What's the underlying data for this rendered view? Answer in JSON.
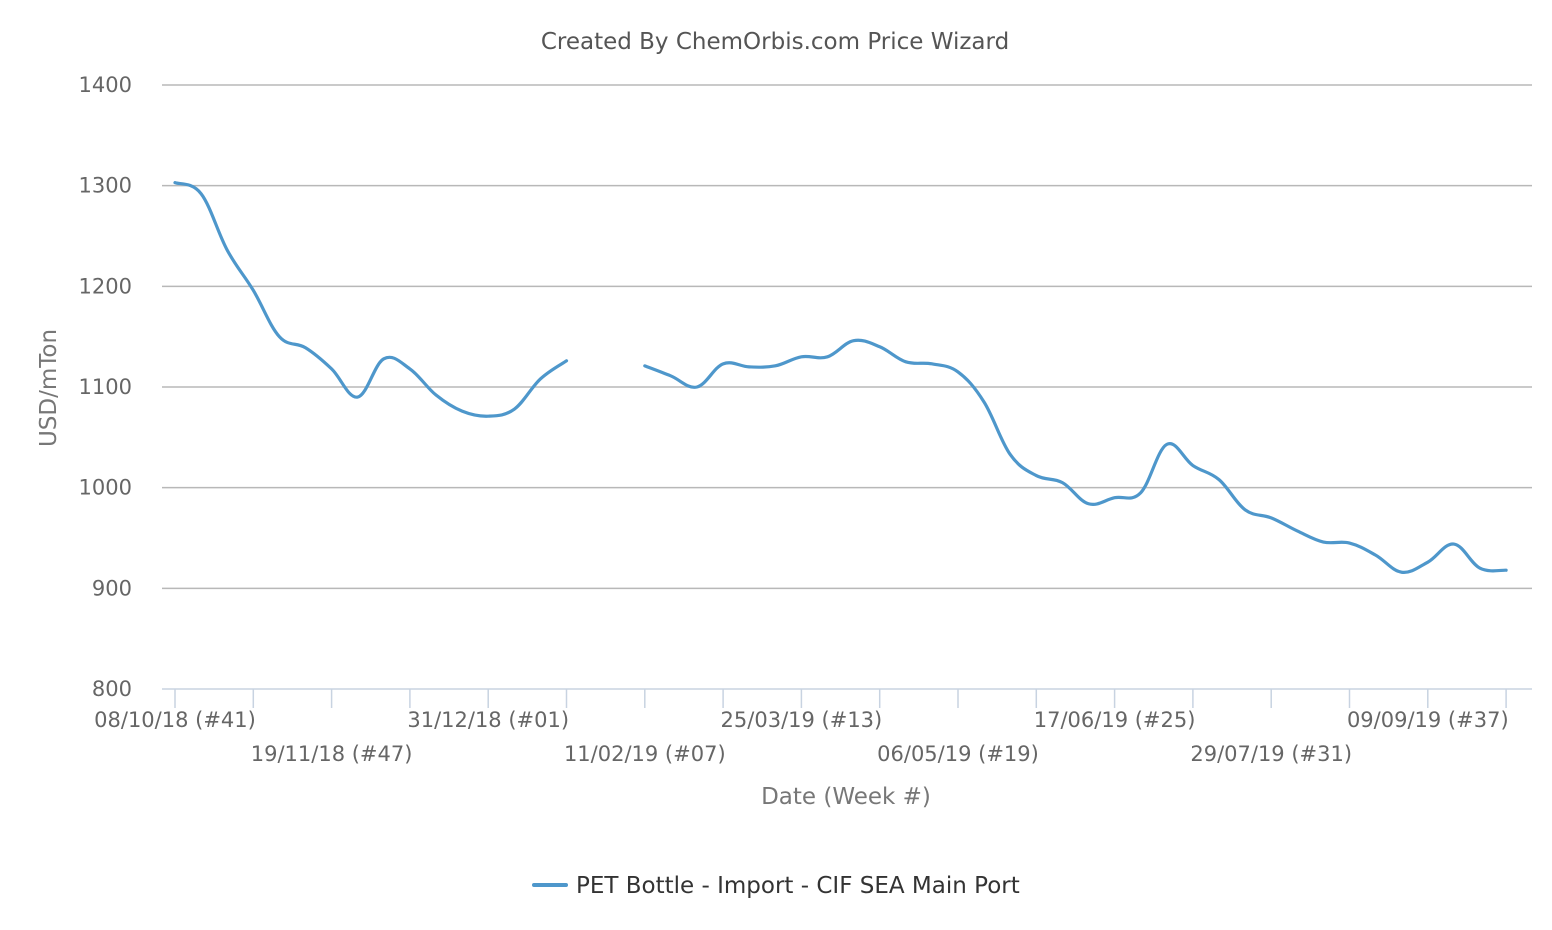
{
  "chart_data": {
    "type": "line",
    "title": "Created By ChemOrbis.com Price Wizard",
    "xlabel": "Date (Week #)",
    "ylabel": "USD/mTon",
    "ylim": [
      800,
      1400
    ],
    "yticks": [
      800,
      900,
      1000,
      1100,
      1200,
      1300,
      1400
    ],
    "grid": true,
    "legend_position": "bottom-center",
    "x_tick_labels": [
      "08/10/18 (#41)",
      "19/11/18 (#47)",
      "31/12/18 (#01)",
      "11/02/19 (#07)",
      "25/03/19 (#13)",
      "06/05/19 (#19)",
      "17/06/19 (#25)",
      "29/07/19 (#31)",
      "09/09/19 (#37)"
    ],
    "series": [
      {
        "name": "PET Bottle - Import - CIF SEA Main Port",
        "color": "#4e97cb",
        "points": [
          {
            "x": "08/10/18",
            "y": 1303
          },
          {
            "x": "15/10/18",
            "y": 1292
          },
          {
            "x": "22/10/18",
            "y": 1236
          },
          {
            "x": "29/10/18",
            "y": 1196
          },
          {
            "x": "05/11/18",
            "y": 1150
          },
          {
            "x": "12/11/18",
            "y": 1139
          },
          {
            "x": "19/11/18",
            "y": 1118
          },
          {
            "x": "26/11/18",
            "y": 1090
          },
          {
            "x": "03/12/18",
            "y": 1128
          },
          {
            "x": "10/12/18",
            "y": 1118
          },
          {
            "x": "17/12/18",
            "y": 1092
          },
          {
            "x": "24/12/18",
            "y": 1076
          },
          {
            "x": "31/12/18",
            "y": 1071
          },
          {
            "x": "07/01/19",
            "y": 1078
          },
          {
            "x": "14/01/19",
            "y": 1108
          },
          {
            "x": "21/01/19",
            "y": 1126
          },
          {
            "x": "28/01/19",
            "y": null
          },
          {
            "x": "04/02/19",
            "y": null
          },
          {
            "x": "11/02/19",
            "y": 1121
          },
          {
            "x": "18/02/19",
            "y": 1111
          },
          {
            "x": "25/02/19",
            "y": 1100
          },
          {
            "x": "04/03/19",
            "y": 1123
          },
          {
            "x": "11/03/19",
            "y": 1120
          },
          {
            "x": "18/03/19",
            "y": 1121
          },
          {
            "x": "25/03/19",
            "y": 1130
          },
          {
            "x": "01/04/19",
            "y": 1130
          },
          {
            "x": "08/04/19",
            "y": 1146
          },
          {
            "x": "15/04/19",
            "y": 1140
          },
          {
            "x": "22/04/19",
            "y": 1125
          },
          {
            "x": "29/04/19",
            "y": 1123
          },
          {
            "x": "06/05/19",
            "y": 1115
          },
          {
            "x": "13/05/19",
            "y": 1085
          },
          {
            "x": "20/05/19",
            "y": 1033
          },
          {
            "x": "27/05/19",
            "y": 1012
          },
          {
            "x": "03/06/19",
            "y": 1005
          },
          {
            "x": "10/06/19",
            "y": 984
          },
          {
            "x": "17/06/19",
            "y": 990
          },
          {
            "x": "24/06/19",
            "y": 995
          },
          {
            "x": "01/07/19",
            "y": 1043
          },
          {
            "x": "08/07/19",
            "y": 1022
          },
          {
            "x": "15/07/19",
            "y": 1008
          },
          {
            "x": "22/07/19",
            "y": 978
          },
          {
            "x": "29/07/19",
            "y": 970
          },
          {
            "x": "05/08/19",
            "y": 957
          },
          {
            "x": "12/08/19",
            "y": 946
          },
          {
            "x": "19/08/19",
            "y": 945
          },
          {
            "x": "26/08/19",
            "y": 933
          },
          {
            "x": "02/09/19",
            "y": 916
          },
          {
            "x": "09/09/19",
            "y": 926
          },
          {
            "x": "16/09/19",
            "y": 944
          },
          {
            "x": "23/09/19",
            "y": 920
          },
          {
            "x": "30/09/19",
            "y": 918
          }
        ]
      }
    ]
  }
}
